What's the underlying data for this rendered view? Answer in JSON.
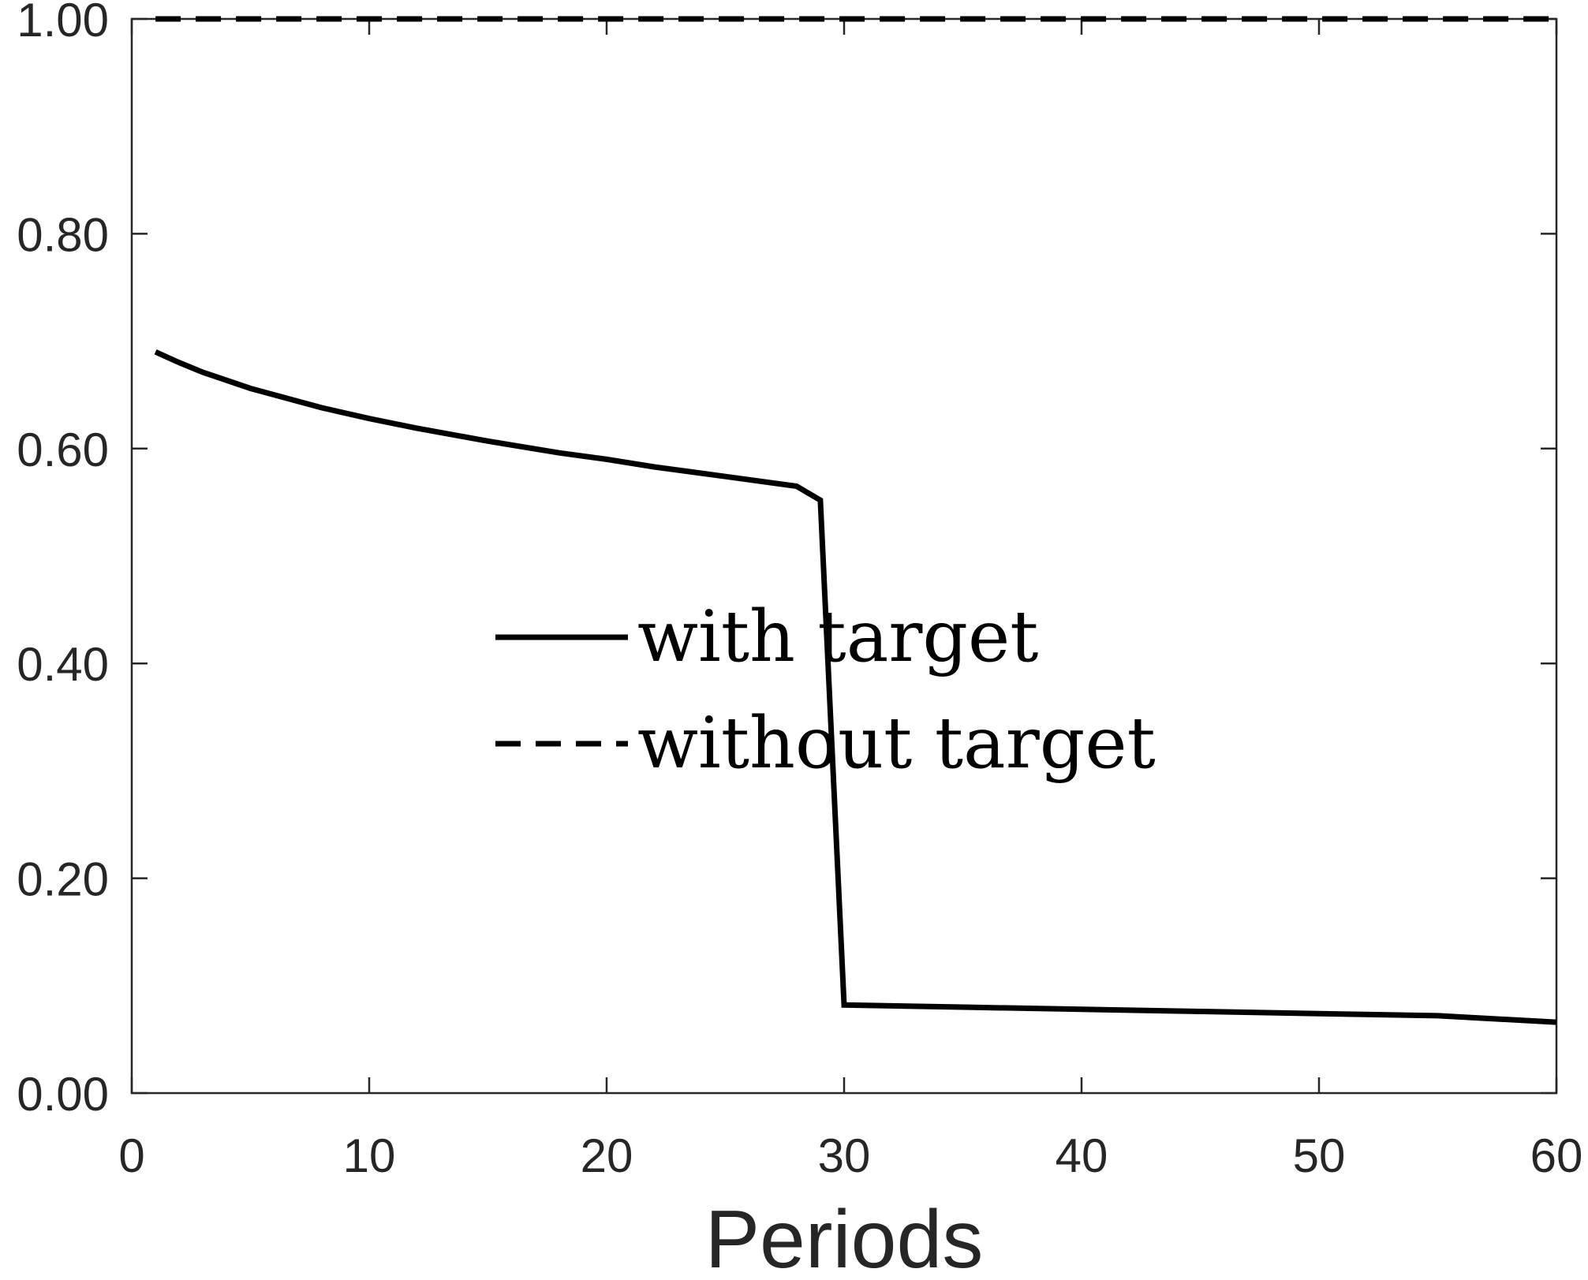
{
  "chart_data": {
    "type": "line",
    "title": "",
    "xlabel": "Periods",
    "ylabel": "",
    "xlim": [
      0,
      60
    ],
    "ylim": [
      0,
      1
    ],
    "xticks": [
      0,
      10,
      20,
      30,
      40,
      50,
      60
    ],
    "xtick_labels": [
      "0",
      "10",
      "20",
      "30",
      "40",
      "50",
      "60"
    ],
    "yticks": [
      0,
      0.2,
      0.4,
      0.6,
      0.8,
      1.0
    ],
    "ytick_labels": [
      "0.00",
      "0.20",
      "0.40",
      "0.60",
      "0.80",
      "1.00"
    ],
    "grid": false,
    "legend_position": "center",
    "series": [
      {
        "name": "with target",
        "style": "solid",
        "color": "#000000",
        "x": [
          1,
          2,
          3,
          5,
          8,
          10,
          12,
          15,
          18,
          20,
          22,
          25,
          28,
          29,
          30,
          35,
          40,
          45,
          50,
          55,
          60
        ],
        "y": [
          0.69,
          0.68,
          0.671,
          0.656,
          0.638,
          0.628,
          0.619,
          0.607,
          0.596,
          0.59,
          0.583,
          0.574,
          0.565,
          0.552,
          0.082,
          0.08,
          0.078,
          0.076,
          0.074,
          0.072,
          0.066
        ]
      },
      {
        "name": "without target",
        "style": "dashed",
        "color": "#000000",
        "x": [
          1,
          60
        ],
        "y": [
          1.0,
          1.0
        ]
      }
    ]
  }
}
